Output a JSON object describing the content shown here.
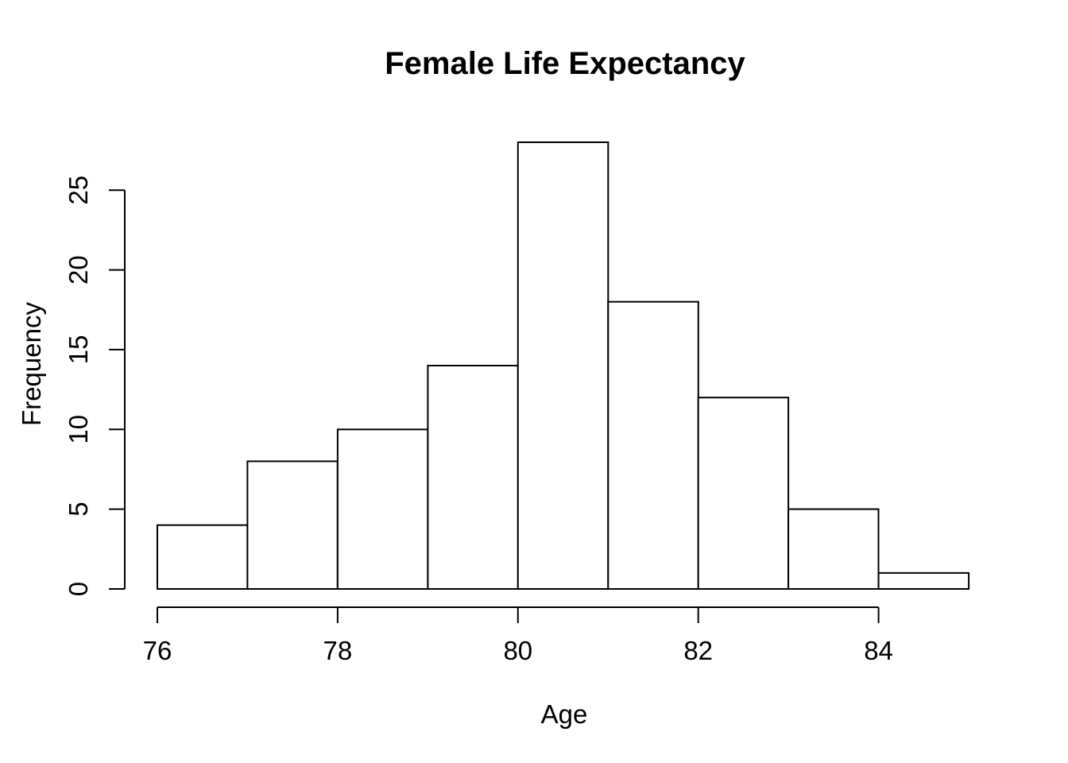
{
  "figure": {
    "background_color": "#ffffff",
    "line_color": "#000000"
  },
  "chart_data": {
    "type": "bar",
    "subtype": "histogram",
    "title": "Female Life Expectancy",
    "xlabel": "Age",
    "ylabel": "Frequency",
    "bin_edges": [
      76,
      77,
      78,
      79,
      80,
      81,
      82,
      83,
      84,
      85
    ],
    "counts": [
      4,
      8,
      10,
      14,
      28,
      18,
      12,
      5,
      1
    ],
    "x_ticks": [
      76,
      78,
      80,
      82,
      84
    ],
    "y_ticks": [
      0,
      5,
      10,
      15,
      20,
      25
    ],
    "xlim": [
      76,
      85
    ],
    "ylim": [
      0,
      28
    ],
    "grid": false,
    "legend": "none",
    "bar_fill": "#ffffff",
    "bar_stroke": "#000000",
    "axis_color": "#000000",
    "y_tick_labels_rotated": true
  }
}
